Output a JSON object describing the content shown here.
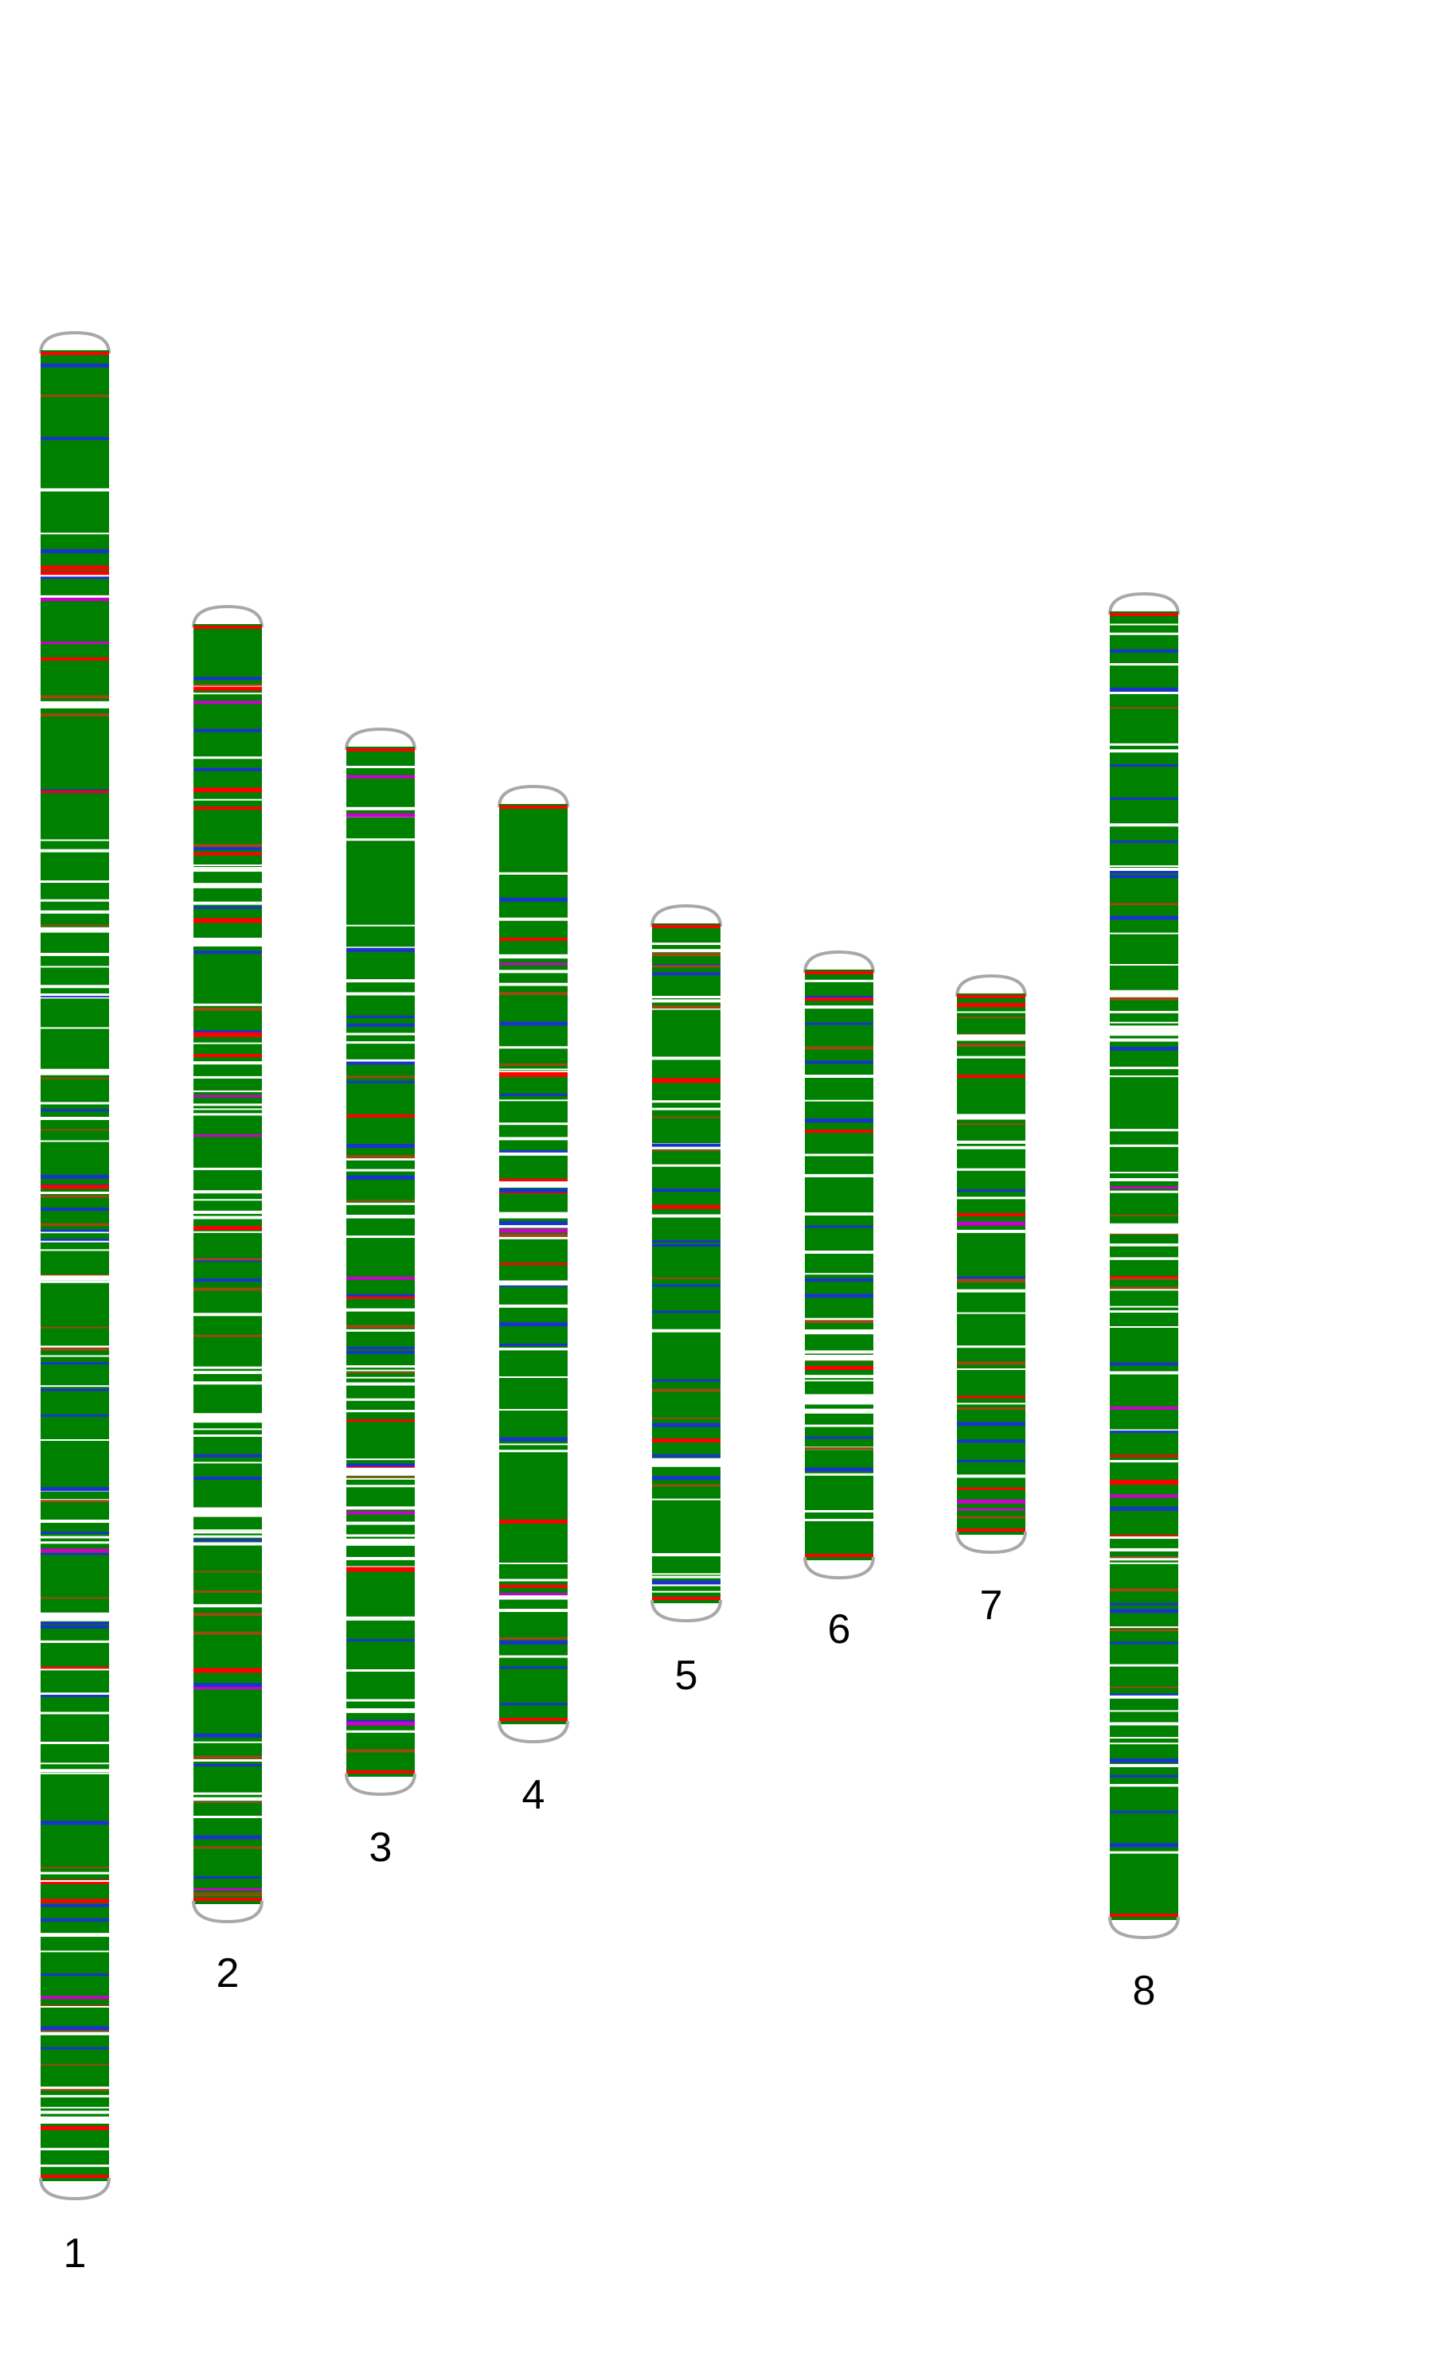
{
  "colors": {
    "body": "#008000",
    "cap": "#a8a8a8",
    "band_white": "#ffffff",
    "band_blue": "#1a33cc",
    "band_red": "#ff0000",
    "band_brown": "#9a4a10",
    "band_magenta": "#cc00cc"
  },
  "chromosomes": [
    {
      "label": "1"
    },
    {
      "label": "2"
    },
    {
      "label": "3"
    },
    {
      "label": "4"
    },
    {
      "label": "5"
    },
    {
      "label": "6"
    },
    {
      "label": "7"
    },
    {
      "label": "8"
    }
  ]
}
